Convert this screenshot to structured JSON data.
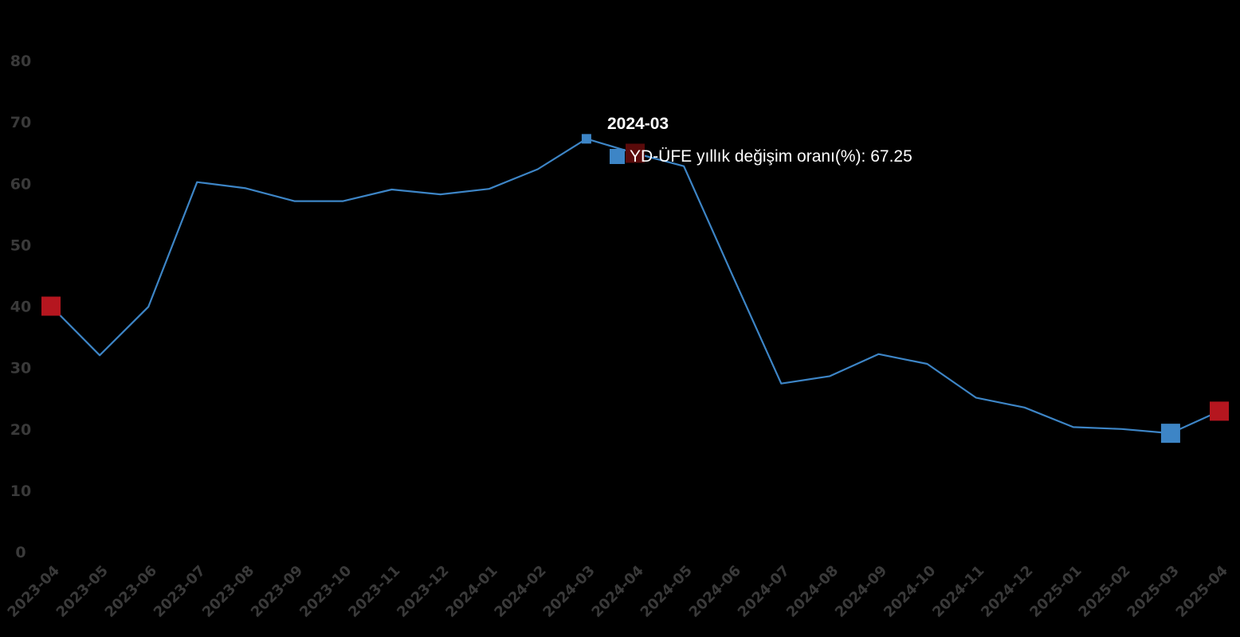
{
  "chart_data": {
    "type": "line",
    "title": "",
    "xlabel": "",
    "ylabel": "",
    "ylim": [
      0,
      80
    ],
    "yticks": [
      0,
      10,
      20,
      30,
      40,
      50,
      60,
      70,
      80
    ],
    "grid": false,
    "categories": [
      "2023-04",
      "2023-05",
      "2023-06",
      "2023-07",
      "2023-08",
      "2023-09",
      "2023-10",
      "2023-11",
      "2023-12",
      "2024-01",
      "2024-02",
      "2024-03",
      "2024-04",
      "2024-05",
      "2024-06",
      "2024-07",
      "2024-08",
      "2024-09",
      "2024-10",
      "2024-11",
      "2024-12",
      "2025-01",
      "2025-02",
      "2025-03",
      "2025-04"
    ],
    "series": [
      {
        "name": "YD-ÜFE yıllık değişim oranı(%)",
        "color": "#3d85c6",
        "values": [
          40.0,
          32.0,
          39.9,
          60.2,
          59.2,
          57.1,
          57.1,
          59.0,
          58.2,
          59.1,
          62.3,
          67.25,
          64.9,
          62.8,
          45.0,
          27.4,
          28.6,
          32.2,
          30.6,
          25.1,
          23.5,
          20.3,
          20.0,
          19.3,
          22.9
        ]
      }
    ],
    "markers": [
      {
        "category": "2023-04",
        "color": "#b5161f"
      },
      {
        "category": "2024-04",
        "color": "#5a0a0a"
      },
      {
        "category": "2025-03",
        "color": "#3d85c6"
      },
      {
        "category": "2025-04",
        "color": "#b5161f"
      }
    ],
    "tooltip": {
      "category": "2024-03",
      "title": "2024-03",
      "series_label": "YD-ÜFE yıllık değişim oranı(%): 67.25",
      "swatch_color": "#3d85c6"
    }
  }
}
